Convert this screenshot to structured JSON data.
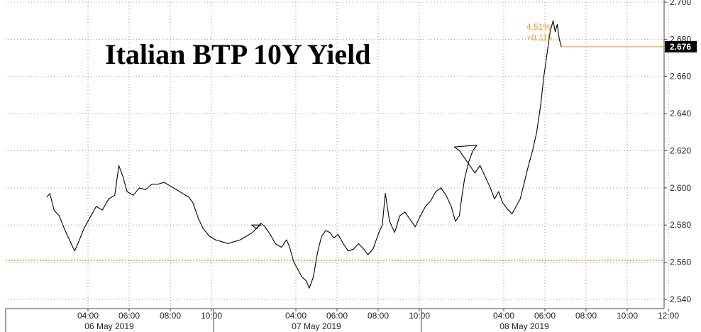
{
  "chart_data": {
    "type": "line",
    "title": "Italian BTP 10Y Yield",
    "xlabel": "",
    "ylabel": "",
    "ylim": [
      2.535,
      2.7
    ],
    "y_ticks": [
      "2.540",
      "2.560",
      "2.580",
      "2.600",
      "2.620",
      "2.640",
      "2.660",
      "2.680",
      "2.700"
    ],
    "x_hour_ticks": [
      {
        "label": "04:00",
        "day": 0,
        "hour": 4
      },
      {
        "label": "06:00",
        "day": 0,
        "hour": 6
      },
      {
        "label": "08:00",
        "day": 0,
        "hour": 8
      },
      {
        "label": "10:00",
        "day": 0,
        "hour": 10
      },
      {
        "label": "04:00",
        "day": 1,
        "hour": 4
      },
      {
        "label": "06:00",
        "day": 1,
        "hour": 6
      },
      {
        "label": "08:00",
        "day": 1,
        "hour": 8
      },
      {
        "label": "10:00",
        "day": 1,
        "hour": 10
      },
      {
        "label": "04:00",
        "day": 2,
        "hour": 4
      },
      {
        "label": "06:00",
        "day": 2,
        "hour": 6
      },
      {
        "label": "08:00",
        "day": 2,
        "hour": 8
      },
      {
        "label": "10:00",
        "day": 2,
        "hour": 10
      },
      {
        "label": "12:00",
        "day": 2,
        "hour": 12
      }
    ],
    "x_day_labels": [
      "06 May 2019",
      "07 May 2019",
      "08 May 2019"
    ],
    "reference_level": 2.561,
    "last_value": "2.676",
    "annotation": {
      "pct": "4.51%",
      "chg": "+0.115"
    },
    "series": [
      {
        "values": [
          [
            0,
            2.0,
            2.595
          ],
          [
            0,
            2.15,
            2.597
          ],
          [
            0,
            2.35,
            2.588
          ],
          [
            0,
            2.6,
            2.585
          ],
          [
            0,
            2.85,
            2.578
          ],
          [
            0,
            3.1,
            2.572
          ],
          [
            0,
            3.35,
            2.566
          ],
          [
            0,
            3.55,
            2.571
          ],
          [
            0,
            3.8,
            2.578
          ],
          [
            0,
            4.1,
            2.584
          ],
          [
            0,
            4.4,
            2.59
          ],
          [
            0,
            4.7,
            2.588
          ],
          [
            0,
            5.0,
            2.594
          ],
          [
            0,
            5.3,
            2.596
          ],
          [
            0,
            5.5,
            2.612
          ],
          [
            0,
            5.7,
            2.606
          ],
          [
            0,
            5.9,
            2.598
          ],
          [
            0,
            6.2,
            2.596
          ],
          [
            0,
            6.5,
            2.6
          ],
          [
            0,
            6.8,
            2.599
          ],
          [
            0,
            7.1,
            2.602
          ],
          [
            0,
            7.4,
            2.602
          ],
          [
            0,
            7.7,
            2.603
          ],
          [
            0,
            8.0,
            2.601
          ],
          [
            0,
            8.3,
            2.599
          ],
          [
            0,
            8.6,
            2.597
          ],
          [
            0,
            8.9,
            2.595
          ],
          [
            0,
            9.1,
            2.592
          ],
          [
            0,
            9.35,
            2.584
          ],
          [
            0,
            9.6,
            2.578
          ],
          [
            0,
            9.9,
            2.574
          ],
          [
            0,
            10.2,
            2.572
          ],
          [
            0,
            10.5,
            2.571
          ],
          [
            0,
            10.8,
            2.57
          ],
          [
            0,
            11.1,
            2.571
          ],
          [
            0,
            11.4,
            2.572
          ],
          [
            0,
            11.7,
            2.574
          ],
          [
            0,
            12.0,
            2.576
          ],
          [
            0,
            12.25,
            2.579
          ],
          [
            0,
            12.4,
            2.58
          ],
          [
            1,
            1.85,
            2.58
          ],
          [
            1,
            2.1,
            2.578
          ],
          [
            1,
            2.3,
            2.581
          ],
          [
            1,
            2.5,
            2.579
          ],
          [
            1,
            2.75,
            2.575
          ],
          [
            1,
            3.0,
            2.57
          ],
          [
            1,
            3.3,
            2.568
          ],
          [
            1,
            3.55,
            2.572
          ],
          [
            1,
            3.7,
            2.568
          ],
          [
            1,
            3.9,
            2.56
          ],
          [
            1,
            4.1,
            2.556
          ],
          [
            1,
            4.3,
            2.552
          ],
          [
            1,
            4.5,
            2.55
          ],
          [
            1,
            4.65,
            2.546
          ],
          [
            1,
            4.85,
            2.552
          ],
          [
            1,
            5.05,
            2.565
          ],
          [
            1,
            5.25,
            2.574
          ],
          [
            1,
            5.45,
            2.577
          ],
          [
            1,
            5.65,
            2.576
          ],
          [
            1,
            5.85,
            2.573
          ],
          [
            1,
            6.05,
            2.575
          ],
          [
            1,
            6.3,
            2.57
          ],
          [
            1,
            6.55,
            2.566
          ],
          [
            1,
            6.8,
            2.567
          ],
          [
            1,
            7.05,
            2.57
          ],
          [
            1,
            7.3,
            2.567
          ],
          [
            1,
            7.5,
            2.564
          ],
          [
            1,
            7.75,
            2.567
          ],
          [
            1,
            8.0,
            2.575
          ],
          [
            1,
            8.2,
            2.58
          ],
          [
            1,
            8.35,
            2.597
          ],
          [
            1,
            8.55,
            2.582
          ],
          [
            1,
            8.8,
            2.576
          ],
          [
            1,
            9.05,
            2.585
          ],
          [
            1,
            9.3,
            2.587
          ],
          [
            1,
            9.55,
            2.583
          ],
          [
            1,
            9.8,
            2.579
          ],
          [
            1,
            10.05,
            2.585
          ],
          [
            1,
            10.3,
            2.59
          ],
          [
            1,
            10.55,
            2.593
          ],
          [
            1,
            10.8,
            2.598
          ],
          [
            1,
            11.05,
            2.6
          ],
          [
            1,
            11.3,
            2.596
          ],
          [
            1,
            11.55,
            2.59
          ],
          [
            1,
            11.75,
            2.582
          ],
          [
            1,
            11.95,
            2.585
          ],
          [
            1,
            12.05,
            2.594
          ],
          [
            1,
            12.2,
            2.605
          ],
          [
            1,
            12.4,
            2.614
          ],
          [
            1,
            12.6,
            2.62
          ],
          [
            1,
            12.8,
            2.623
          ],
          [
            2,
            1.6,
            2.622
          ],
          [
            2,
            1.85,
            2.62
          ],
          [
            2,
            2.1,
            2.616
          ],
          [
            2,
            2.35,
            2.612
          ],
          [
            2,
            2.6,
            2.608
          ],
          [
            2,
            2.85,
            2.612
          ],
          [
            2,
            3.1,
            2.606
          ],
          [
            2,
            3.35,
            2.6
          ],
          [
            2,
            3.55,
            2.594
          ],
          [
            2,
            3.75,
            2.598
          ],
          [
            2,
            3.95,
            2.592
          ],
          [
            2,
            4.15,
            2.589
          ],
          [
            2,
            4.4,
            2.586
          ],
          [
            2,
            4.6,
            2.59
          ],
          [
            2,
            4.8,
            2.594
          ],
          [
            2,
            5.0,
            2.603
          ],
          [
            2,
            5.2,
            2.612
          ],
          [
            2,
            5.4,
            2.62
          ],
          [
            2,
            5.6,
            2.63
          ],
          [
            2,
            5.8,
            2.645
          ],
          [
            2,
            5.95,
            2.66
          ],
          [
            2,
            6.1,
            2.672
          ],
          [
            2,
            6.25,
            2.684
          ],
          [
            2,
            6.4,
            2.69
          ],
          [
            2,
            6.5,
            2.684
          ],
          [
            2,
            6.6,
            2.688
          ],
          [
            2,
            6.7,
            2.68
          ],
          [
            2,
            6.8,
            2.676
          ]
        ]
      }
    ]
  },
  "colors": {
    "series": "#000000",
    "grid": "#9a9a9a",
    "reference": "#e39b1d",
    "last_label_bg": "#000000",
    "current_line": "#e39b1d"
  }
}
